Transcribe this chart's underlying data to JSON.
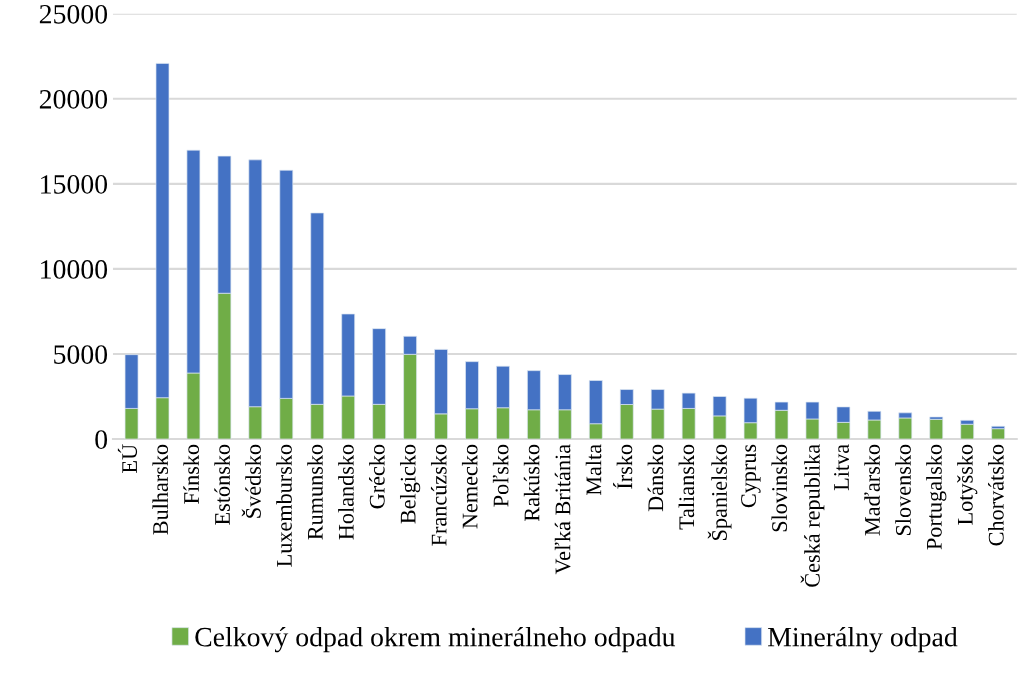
{
  "chart_data": {
    "type": "bar",
    "stacked": true,
    "categories": [
      "EÚ",
      "Bulharsko",
      "Fínsko",
      "Estónsko",
      "Švédsko",
      "Luxembursko",
      "Rumunsko",
      "Holandsko",
      "Grécko",
      "Belgicko",
      "Francúzsko",
      "Nemecko",
      "Poľsko",
      "Rakúsko",
      "Veľká Británia",
      "Malta",
      "Írsko",
      "Dánsko",
      "Taliansko",
      "Španielsko",
      "Cyprus",
      "Slovinsko",
      "Česká republika",
      "Litva",
      "Maďarsko",
      "Slovensko",
      "Portugalsko",
      "Lotyšsko",
      "Chorvátsko"
    ],
    "series": [
      {
        "name": "Celkový odpad okrem minerálneho odpadu",
        "color": "#70ad47",
        "values": [
          1800,
          2430,
          3880,
          8570,
          1900,
          2390,
          2040,
          2530,
          2040,
          4980,
          1480,
          1780,
          1840,
          1720,
          1720,
          900,
          2030,
          1760,
          1800,
          1360,
          960,
          1690,
          1180,
          980,
          1120,
          1240,
          1160,
          870,
          610
        ]
      },
      {
        "name": "Minerálny odpad",
        "color": "#4472c4",
        "values": [
          3160,
          19650,
          13100,
          8060,
          14510,
          13410,
          11250,
          4820,
          4450,
          1060,
          3790,
          2770,
          2440,
          2300,
          2070,
          2540,
          880,
          1150,
          900,
          1140,
          1440,
          480,
          990,
          910,
          510,
          300,
          140,
          230,
          140
        ]
      }
    ],
    "ylim": [
      0,
      25000
    ],
    "yticks": [
      0,
      5000,
      10000,
      15000,
      20000,
      25000
    ],
    "grid": "y",
    "legend": "bottom"
  }
}
